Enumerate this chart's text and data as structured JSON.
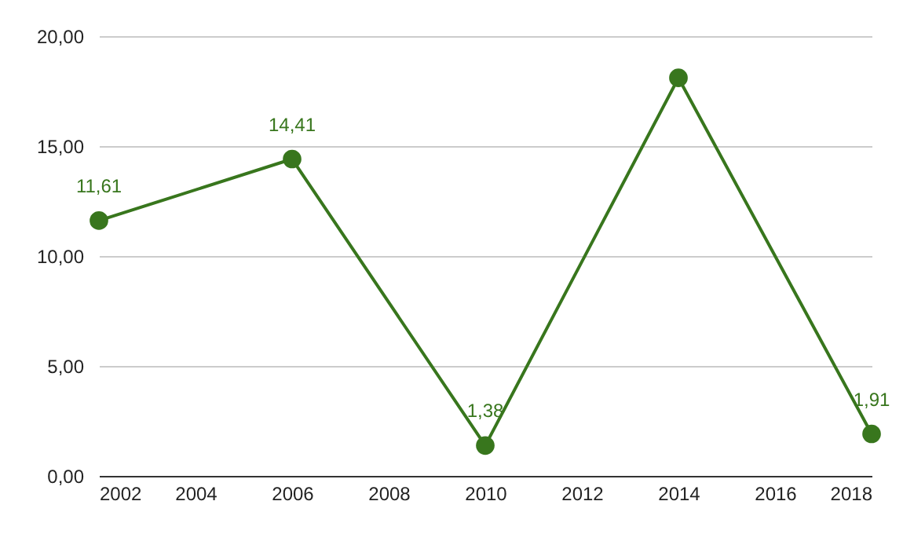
{
  "chart_data": {
    "type": "line",
    "x": [
      2002,
      2006,
      2010,
      2014,
      2018
    ],
    "series": [
      {
        "color": "#38761d",
        "values": [
          11.61,
          14.41,
          1.38,
          18.1,
          1.91
        ],
        "value_labels": [
          "11,61",
          "14,41",
          "1,38",
          null,
          "1,91"
        ]
      }
    ],
    "xlim": [
      2002,
      2018
    ],
    "xticks": [
      2002,
      2004,
      2006,
      2008,
      2010,
      2012,
      2014,
      2016,
      2018
    ],
    "ylim": [
      0,
      20
    ],
    "yticks": [
      {
        "value": 0,
        "label": "0,00"
      },
      {
        "value": 5,
        "label": "5,00"
      },
      {
        "value": 10,
        "label": "10,00"
      },
      {
        "value": 15,
        "label": "15,00"
      },
      {
        "value": 20,
        "label": "20,00"
      }
    ],
    "grid": "y",
    "marker": "circle",
    "line_style": "solid"
  }
}
